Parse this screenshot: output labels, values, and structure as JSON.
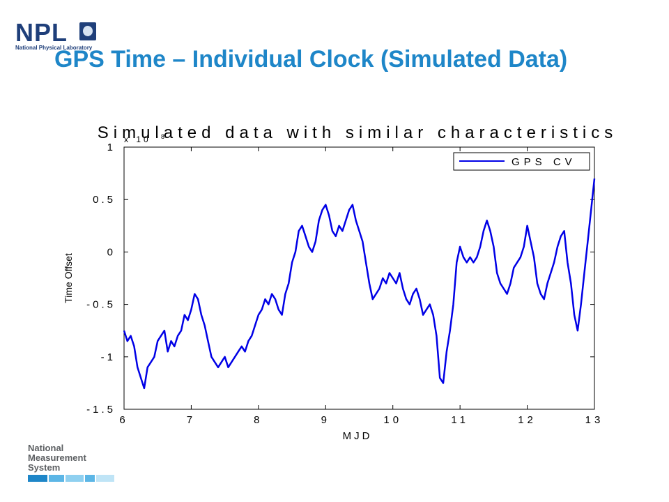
{
  "header": {
    "logo_text": "NPL",
    "logo_subtitle": "National Physical Laboratory",
    "title": "GPS Time – Individual Clock (Simulated Data)"
  },
  "footer": {
    "logo_lines": [
      "National",
      "Measurement",
      "System"
    ]
  },
  "colors": {
    "title": "#1e86c8",
    "brand": "#1f3f7a",
    "series": "#0000e6"
  },
  "chart_data": {
    "type": "line",
    "title": "Simulated data with similar characteristics",
    "xlabel": "MJD",
    "ylabel": "Time Offset",
    "y_scale_label": "x 10",
    "y_scale_exponent": "-8",
    "xlim": [
      6,
      13
    ],
    "ylim": [
      -1.5,
      1
    ],
    "x_ticks": [
      6,
      7,
      8,
      9,
      10,
      11,
      12,
      13
    ],
    "x_tick_labels": [
      "6",
      "7",
      "8",
      "9",
      "10",
      "11",
      "12",
      "13"
    ],
    "y_ticks": [
      1,
      0.5,
      0,
      -0.5,
      -1,
      -1.5
    ],
    "y_tick_labels": [
      "1",
      "0.5",
      "0",
      "-0.5",
      "-1",
      "-1.5"
    ],
    "legend": {
      "position": "top-right",
      "entries": [
        "GPS CV"
      ]
    },
    "grid": false,
    "series": [
      {
        "name": "GPS CV",
        "x": [
          6.0,
          6.05,
          6.1,
          6.15,
          6.2,
          6.25,
          6.3,
          6.35,
          6.4,
          6.45,
          6.5,
          6.55,
          6.6,
          6.65,
          6.7,
          6.75,
          6.8,
          6.85,
          6.9,
          6.95,
          7.0,
          7.05,
          7.1,
          7.15,
          7.2,
          7.25,
          7.3,
          7.35,
          7.4,
          7.45,
          7.5,
          7.55,
          7.6,
          7.65,
          7.7,
          7.75,
          7.8,
          7.85,
          7.9,
          7.95,
          8.0,
          8.05,
          8.1,
          8.15,
          8.2,
          8.25,
          8.3,
          8.35,
          8.4,
          8.45,
          8.5,
          8.55,
          8.6,
          8.65,
          8.7,
          8.75,
          8.8,
          8.85,
          8.9,
          8.95,
          9.0,
          9.05,
          9.1,
          9.15,
          9.2,
          9.25,
          9.3,
          9.35,
          9.4,
          9.45,
          9.5,
          9.55,
          9.6,
          9.65,
          9.7,
          9.75,
          9.8,
          9.85,
          9.9,
          9.95,
          10.0,
          10.05,
          10.1,
          10.15,
          10.2,
          10.25,
          10.3,
          10.35,
          10.4,
          10.45,
          10.5,
          10.55,
          10.6,
          10.65,
          10.7,
          10.75,
          10.8,
          10.85,
          10.9,
          10.95,
          11.0,
          11.05,
          11.1,
          11.15,
          11.2,
          11.25,
          11.3,
          11.35,
          11.4,
          11.45,
          11.5,
          11.55,
          11.6,
          11.65,
          11.7,
          11.75,
          11.8,
          11.85,
          11.9,
          11.95,
          12.0,
          12.05,
          12.1,
          12.15,
          12.2,
          12.25,
          12.3,
          12.35,
          12.4,
          12.45,
          12.5,
          12.55,
          12.6,
          12.65,
          12.7,
          12.75,
          12.8,
          12.85,
          12.9,
          12.95,
          13.0
        ],
        "y": [
          -0.75,
          -0.85,
          -0.8,
          -0.9,
          -1.1,
          -1.2,
          -1.3,
          -1.1,
          -1.05,
          -1.0,
          -0.85,
          -0.8,
          -0.75,
          -0.95,
          -0.85,
          -0.9,
          -0.8,
          -0.75,
          -0.6,
          -0.65,
          -0.55,
          -0.4,
          -0.45,
          -0.6,
          -0.7,
          -0.85,
          -1.0,
          -1.05,
          -1.1,
          -1.05,
          -1.0,
          -1.1,
          -1.05,
          -1.0,
          -0.95,
          -0.9,
          -0.95,
          -0.85,
          -0.8,
          -0.7,
          -0.6,
          -0.55,
          -0.45,
          -0.5,
          -0.4,
          -0.45,
          -0.55,
          -0.6,
          -0.4,
          -0.3,
          -0.1,
          0.0,
          0.2,
          0.25,
          0.15,
          0.05,
          0.0,
          0.1,
          0.3,
          0.4,
          0.45,
          0.35,
          0.2,
          0.15,
          0.25,
          0.2,
          0.3,
          0.4,
          0.45,
          0.3,
          0.2,
          0.1,
          -0.1,
          -0.3,
          -0.45,
          -0.4,
          -0.35,
          -0.25,
          -0.3,
          -0.2,
          -0.25,
          -0.3,
          -0.2,
          -0.35,
          -0.45,
          -0.5,
          -0.4,
          -0.35,
          -0.45,
          -0.6,
          -0.55,
          -0.5,
          -0.6,
          -0.8,
          -1.2,
          -1.25,
          -0.95,
          -0.75,
          -0.5,
          -0.1,
          0.05,
          -0.05,
          -0.1,
          -0.05,
          -0.1,
          -0.05,
          0.05,
          0.2,
          0.3,
          0.2,
          0.05,
          -0.2,
          -0.3,
          -0.35,
          -0.4,
          -0.3,
          -0.15,
          -0.1,
          -0.05,
          0.05,
          0.25,
          0.1,
          -0.05,
          -0.3,
          -0.4,
          -0.45,
          -0.3,
          -0.2,
          -0.1,
          0.05,
          0.15,
          0.2,
          -0.1,
          -0.3,
          -0.6,
          -0.75,
          -0.5,
          -0.2,
          0.1,
          0.4,
          0.7
        ]
      }
    ]
  }
}
